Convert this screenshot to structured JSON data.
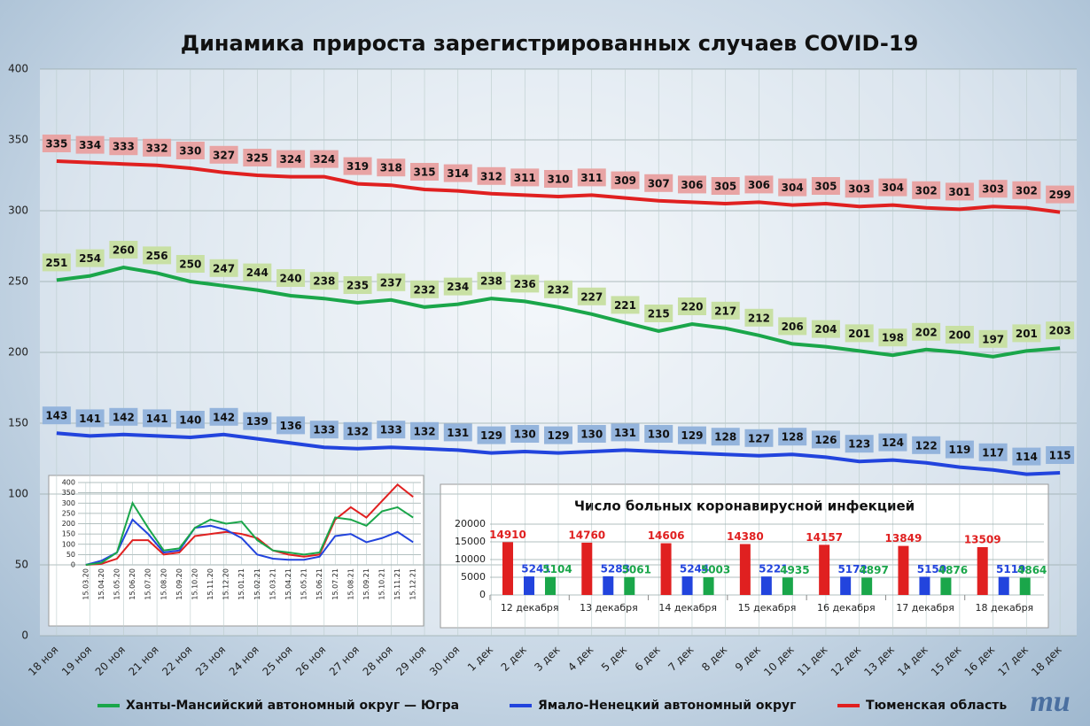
{
  "chart_data": [
    {
      "type": "line",
      "title": "Динамика прироста зарегистрированных случаев COVID-19",
      "categories": [
        "18 ноя",
        "19 ноя",
        "20 ноя",
        "21 ноя",
        "22 ноя",
        "23 ноя",
        "24 ноя",
        "25 ноя",
        "26 ноя",
        "27 ноя",
        "28 ноя",
        "29 ноя",
        "30 ноя",
        "1 дек",
        "2 дек",
        "3 дек",
        "4 дек",
        "5 дек",
        "6 дек",
        "7 дек",
        "8 дек",
        "9 дек",
        "10 дек",
        "11 дек",
        "12 дек",
        "13 дек",
        "14 дек",
        "15 дек",
        "16 дек",
        "17 дек",
        "18 дек"
      ],
      "series": [
        {
          "name": "Ханты-Мансийский автономный округ — Югра",
          "color": "#1aa64a",
          "label_fill": "#c8e0a4",
          "values": [
            251,
            254,
            260,
            256,
            250,
            247,
            244,
            240,
            238,
            235,
            237,
            232,
            234,
            238,
            236,
            232,
            227,
            221,
            215,
            220,
            217,
            212,
            206,
            204,
            201,
            198,
            202,
            200,
            197,
            201,
            203
          ]
        },
        {
          "name": "Ямало-Ненецкий автономный округ",
          "color": "#2244dd",
          "label_fill": "#94b4dc",
          "values": [
            143,
            141,
            142,
            141,
            140,
            142,
            139,
            136,
            133,
            132,
            133,
            132,
            131,
            129,
            130,
            129,
            130,
            131,
            130,
            129,
            128,
            127,
            128,
            126,
            123,
            124,
            122,
            119,
            117,
            114,
            115
          ]
        },
        {
          "name": "Тюменская область",
          "color": "#e02020",
          "label_fill": "#e8a4a4",
          "values": [
            335,
            334,
            333,
            332,
            330,
            327,
            325,
            324,
            324,
            319,
            318,
            315,
            314,
            312,
            311,
            310,
            311,
            309,
            307,
            306,
            305,
            306,
            304,
            305,
            303,
            304,
            302,
            301,
            303,
            302,
            299
          ]
        }
      ],
      "ylim": [
        0,
        400
      ],
      "yticks": [
        0,
        50,
        100,
        150,
        200,
        250,
        300,
        350,
        400
      ],
      "grid": true,
      "legend": "bottom",
      "data_labels": true
    },
    {
      "type": "line",
      "categories": [
        "15.03.20",
        "15.04.20",
        "15.05.20",
        "15.06.20",
        "15.07.20",
        "15.08.20",
        "15.09.20",
        "15.10.20",
        "15.11.20",
        "15.12.20",
        "15.01.21",
        "15.02.21",
        "15.03.21",
        "15.04.21",
        "15.05.21",
        "15.06.21",
        "15.07.21",
        "15.08.21",
        "15.09.21",
        "15.10.21",
        "15.11.21",
        "15.12.21"
      ],
      "series": [
        {
          "color": "#e02020",
          "values": [
            0,
            5,
            30,
            120,
            120,
            50,
            60,
            140,
            150,
            160,
            150,
            130,
            70,
            50,
            40,
            50,
            220,
            280,
            230,
            310,
            390,
            330
          ]
        },
        {
          "color": "#2244dd",
          "values": [
            0,
            20,
            60,
            220,
            150,
            60,
            70,
            180,
            190,
            170,
            130,
            50,
            30,
            25,
            25,
            40,
            140,
            150,
            110,
            130,
            160,
            110
          ]
        },
        {
          "color": "#1aa64a",
          "values": [
            0,
            10,
            60,
            300,
            180,
            70,
            80,
            180,
            220,
            200,
            210,
            120,
            70,
            60,
            50,
            60,
            230,
            220,
            190,
            260,
            280,
            230
          ]
        }
      ],
      "ylim": [
        0,
        400
      ],
      "yticks": [
        0,
        50,
        100,
        150,
        200,
        250,
        300,
        350,
        400
      ],
      "grid": true
    },
    {
      "type": "bar",
      "title": "Число больных  коронавирусной  инфекцией",
      "categories": [
        "12 декабря",
        "13 декабря",
        "14 декабря",
        "15 декабря",
        "16 декабря",
        "17 декабря",
        "18 декабря"
      ],
      "series": [
        {
          "color": "#e02020",
          "values": [
            14910,
            14760,
            14606,
            14380,
            14157,
            13849,
            13509
          ]
        },
        {
          "color": "#2244dd",
          "values": [
            5241,
            5283,
            5244,
            5221,
            5172,
            5150,
            5119
          ]
        },
        {
          "color": "#1aa64a",
          "values": [
            5104,
            5061,
            5003,
            4935,
            4897,
            4876,
            4864
          ]
        }
      ],
      "ylim": [
        0,
        20000
      ],
      "yticks": [
        0,
        5000,
        10000,
        15000,
        20000
      ],
      "grid": true,
      "data_labels": true
    }
  ],
  "logo": "mu"
}
